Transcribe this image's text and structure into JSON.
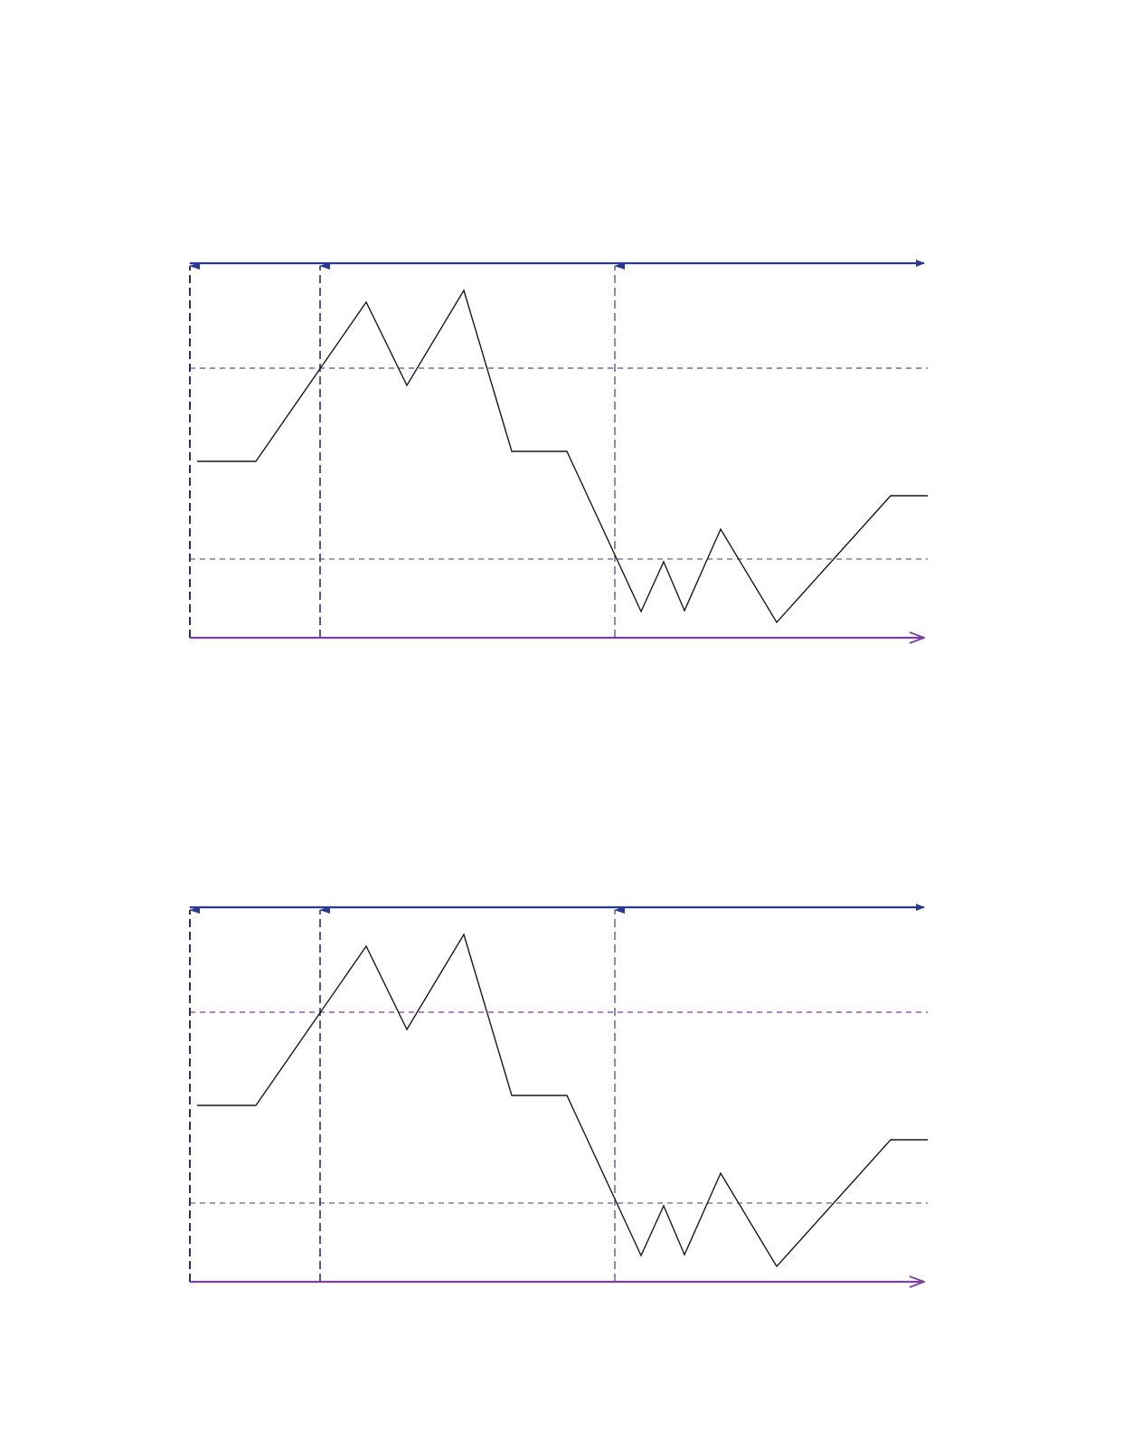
{
  "diagram": {
    "panels": 2,
    "colors": {
      "top_axis": "#2b3990",
      "bottom_axis": "#7b3fa0",
      "vertical_markers": "#2b2d6e",
      "upper_threshold": "#7b3f8a",
      "lower_threshold": "#4a3a6a",
      "signal_line": "#1a1a1a"
    }
  }
}
